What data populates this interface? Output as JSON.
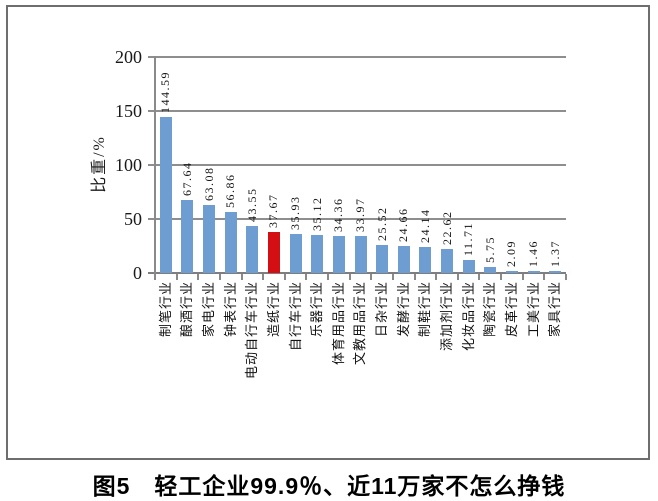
{
  "figure": {
    "caption": "图5　轻工企业99.9％、近11万家不怎么挣钱"
  },
  "chart_data": {
    "type": "bar",
    "title": "",
    "xlabel": "",
    "ylabel": "比重/%",
    "ylim": [
      0,
      200
    ],
    "yticks": [
      200,
      150,
      100,
      50,
      0
    ],
    "grid": true,
    "legend_position": "none",
    "categories": [
      "制笔行业",
      "酿酒行业",
      "家电行业",
      "钟表行业",
      "电动自行车行业",
      "造纸行业",
      "自行车行业",
      "乐器行业",
      "体育用品行业",
      "文教用品行业",
      "日杂行业",
      "发酵行业",
      "制鞋行业",
      "添加剂行业",
      "化妆品行业",
      "陶瓷行业",
      "皮革行业",
      "工美行业",
      "家具行业"
    ],
    "values": [
      144.59,
      67.64,
      63.08,
      56.86,
      43.55,
      37.67,
      35.93,
      35.12,
      34.36,
      33.97,
      25.52,
      24.66,
      24.14,
      22.62,
      11.71,
      5.75,
      2.09,
      1.46,
      1.37
    ],
    "value_labels": [
      "144.59",
      "67.64",
      "63.08",
      "56.86",
      "43.55",
      "37.67",
      "35.93",
      "35.12",
      "34.36",
      "33.97",
      "25.52",
      "24.66",
      "24.14",
      "22.62",
      "11.71",
      "5.75",
      "2.09",
      "1.46",
      "1.37"
    ],
    "bar_color": "#6D9DD1",
    "highlight_color": "#D40F14",
    "highlight_index": 5,
    "highlight_category": "造纸行业",
    "gridline_color": "#8E8E8E"
  }
}
